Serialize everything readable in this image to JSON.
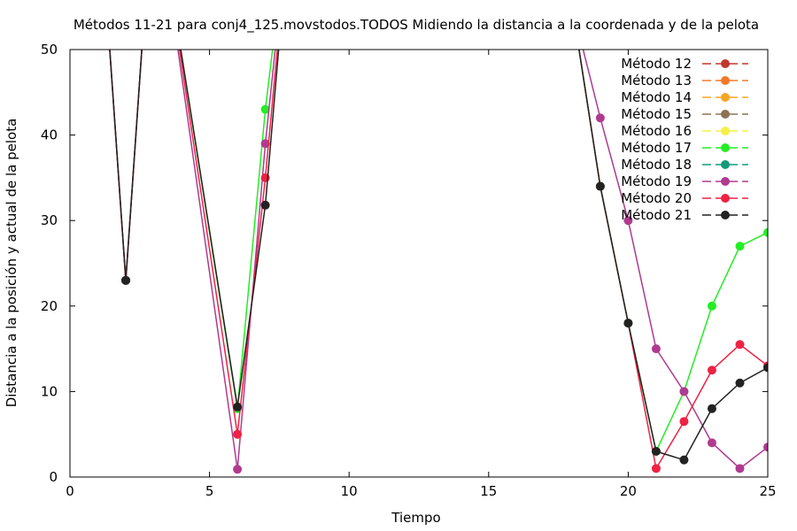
{
  "chart_data": {
    "type": "line",
    "title": "Métodos 11-21 para conj4_125.movstodos.TODOS Midiendo la distancia a la coordenada y de la pelota",
    "xlabel": "Tiempo",
    "ylabel": "Distancia a la posición y actual de la pelota",
    "xlim": [
      0,
      25
    ],
    "ylim": [
      0,
      50
    ],
    "x_ticks": [
      0,
      5,
      10,
      15,
      20,
      25
    ],
    "y_ticks": [
      0,
      10,
      20,
      30,
      40,
      50
    ],
    "grid": false,
    "legend_position": "top-right",
    "series": [
      {
        "name": "Método 12",
        "color": "#c0392b",
        "points": []
      },
      {
        "name": "Método 13",
        "color": "#f07a2a",
        "points": []
      },
      {
        "name": "Método 14",
        "color": "#f5a623",
        "points": []
      },
      {
        "name": "Método 15",
        "color": "#8b7355",
        "points": []
      },
      {
        "name": "Método 16",
        "color": "#f5f04a",
        "points": []
      },
      {
        "name": "Método 17",
        "color": "#22ee22",
        "points": [
          [
            1,
            70
          ],
          [
            2,
            23
          ],
          [
            3,
            70
          ],
          [
            6,
            8
          ],
          [
            7,
            43
          ],
          [
            8,
            70
          ],
          [
            18,
            55
          ],
          [
            19,
            34
          ],
          [
            20,
            18
          ],
          [
            21,
            3
          ],
          [
            22,
            10
          ],
          [
            23,
            20
          ],
          [
            24,
            27
          ],
          [
            25,
            28.6
          ]
        ]
      },
      {
        "name": "Método 18",
        "color": "#149a7a",
        "points": []
      },
      {
        "name": "Método 19",
        "color": "#b03a90",
        "points": [
          [
            1,
            70
          ],
          [
            2,
            23
          ],
          [
            3,
            70
          ],
          [
            6,
            0.9
          ],
          [
            7,
            39
          ],
          [
            8,
            70
          ],
          [
            18,
            55
          ],
          [
            19,
            42
          ],
          [
            20,
            30
          ],
          [
            21,
            15
          ],
          [
            22,
            10
          ],
          [
            23,
            4
          ],
          [
            24,
            1
          ],
          [
            25,
            3.5
          ]
        ]
      },
      {
        "name": "Método 20",
        "color": "#ee2244",
        "points": [
          [
            1,
            70
          ],
          [
            2,
            23
          ],
          [
            3,
            70
          ],
          [
            6,
            5
          ],
          [
            7,
            35
          ],
          [
            8,
            70
          ],
          [
            18,
            55
          ],
          [
            19,
            34
          ],
          [
            20,
            18
          ],
          [
            21,
            1
          ],
          [
            22,
            6.5
          ],
          [
            23,
            12.5
          ],
          [
            24,
            15.5
          ],
          [
            25,
            13
          ]
        ]
      },
      {
        "name": "Método 21",
        "color": "#222222",
        "points": [
          [
            1,
            70
          ],
          [
            2,
            23
          ],
          [
            3,
            70
          ],
          [
            6,
            8.2
          ],
          [
            7,
            31.8
          ],
          [
            8,
            70
          ],
          [
            18,
            55
          ],
          [
            19,
            34
          ],
          [
            20,
            18
          ],
          [
            21,
            3
          ],
          [
            22,
            2
          ],
          [
            23,
            8
          ],
          [
            24,
            11
          ],
          [
            25,
            12.8
          ]
        ]
      }
    ]
  }
}
